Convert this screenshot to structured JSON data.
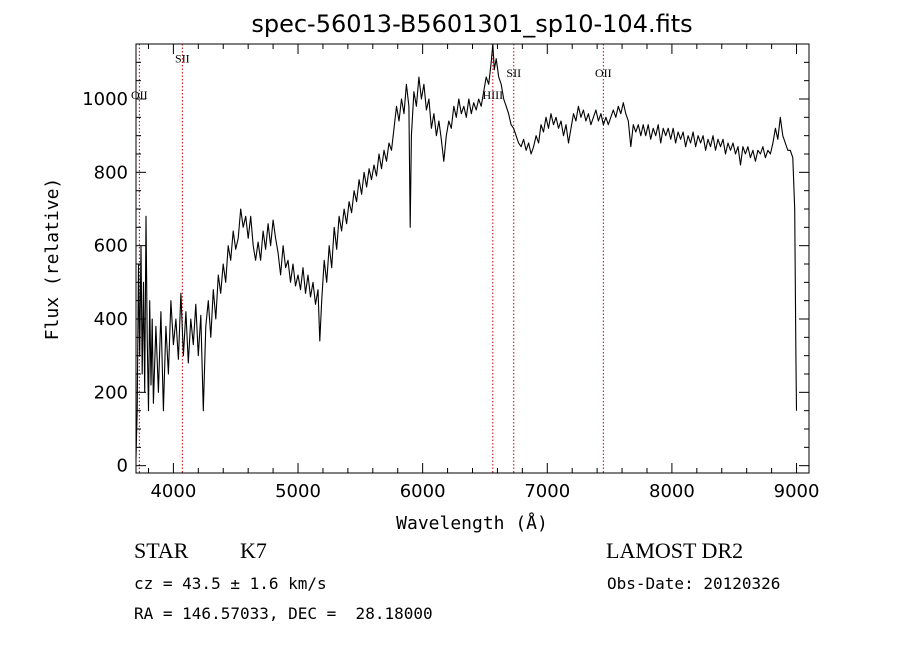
{
  "chart_data": {
    "type": "line",
    "title": "spec-56013-B5601301_sp10-104.fits",
    "xlabel": "Wavelength (Å)",
    "ylabel": "Flux (relative)",
    "xlim": [
      3700,
      9100
    ],
    "ylim": [
      -20,
      1150
    ],
    "x_ticks": [
      4000,
      5000,
      6000,
      7000,
      8000,
      9000
    ],
    "y_ticks": [
      0,
      200,
      400,
      600,
      800,
      1000
    ],
    "grid": false,
    "series": [
      {
        "points": [
          [
            3700,
            20
          ],
          [
            3710,
            150
          ],
          [
            3720,
            550
          ],
          [
            3730,
            300
          ],
          [
            3740,
            600
          ],
          [
            3750,
            250
          ],
          [
            3760,
            500
          ],
          [
            3770,
            200
          ],
          [
            3780,
            680
          ],
          [
            3790,
            350
          ],
          [
            3800,
            150
          ],
          [
            3810,
            450
          ],
          [
            3820,
            220
          ],
          [
            3830,
            400
          ],
          [
            3840,
            170
          ],
          [
            3860,
            380
          ],
          [
            3880,
            200
          ],
          [
            3900,
            420
          ],
          [
            3920,
            150
          ],
          [
            3940,
            380
          ],
          [
            3960,
            250
          ],
          [
            3980,
            450
          ],
          [
            4000,
            330
          ],
          [
            4020,
            400
          ],
          [
            4040,
            290
          ],
          [
            4060,
            470
          ],
          [
            4080,
            300
          ],
          [
            4100,
            420
          ],
          [
            4120,
            280
          ],
          [
            4140,
            400
          ],
          [
            4160,
            330
          ],
          [
            4180,
            440
          ],
          [
            4200,
            300
          ],
          [
            4220,
            410
          ],
          [
            4240,
            150
          ],
          [
            4260,
            380
          ],
          [
            4280,
            450
          ],
          [
            4300,
            350
          ],
          [
            4320,
            480
          ],
          [
            4340,
            400
          ],
          [
            4360,
            520
          ],
          [
            4380,
            470
          ],
          [
            4400,
            550
          ],
          [
            4420,
            500
          ],
          [
            4440,
            600
          ],
          [
            4460,
            560
          ],
          [
            4480,
            640
          ],
          [
            4500,
            590
          ],
          [
            4520,
            620
          ],
          [
            4540,
            700
          ],
          [
            4560,
            650
          ],
          [
            4580,
            680
          ],
          [
            4600,
            620
          ],
          [
            4620,
            680
          ],
          [
            4640,
            600
          ],
          [
            4660,
            560
          ],
          [
            4680,
            610
          ],
          [
            4700,
            560
          ],
          [
            4720,
            640
          ],
          [
            4740,
            590
          ],
          [
            4760,
            660
          ],
          [
            4780,
            600
          ],
          [
            4800,
            670
          ],
          [
            4820,
            620
          ],
          [
            4840,
            580
          ],
          [
            4860,
            520
          ],
          [
            4880,
            600
          ],
          [
            4900,
            540
          ],
          [
            4920,
            560
          ],
          [
            4940,
            500
          ],
          [
            4960,
            550
          ],
          [
            4980,
            490
          ],
          [
            5000,
            520
          ],
          [
            5020,
            480
          ],
          [
            5040,
            540
          ],
          [
            5060,
            470
          ],
          [
            5080,
            520
          ],
          [
            5100,
            460
          ],
          [
            5120,
            500
          ],
          [
            5140,
            440
          ],
          [
            5160,
            480
          ],
          [
            5175,
            340
          ],
          [
            5190,
            450
          ],
          [
            5210,
            560
          ],
          [
            5230,
            500
          ],
          [
            5250,
            600
          ],
          [
            5270,
            540
          ],
          [
            5290,
            650
          ],
          [
            5310,
            590
          ],
          [
            5330,
            680
          ],
          [
            5350,
            640
          ],
          [
            5370,
            700
          ],
          [
            5390,
            660
          ],
          [
            5410,
            720
          ],
          [
            5430,
            690
          ],
          [
            5450,
            750
          ],
          [
            5470,
            720
          ],
          [
            5490,
            780
          ],
          [
            5510,
            740
          ],
          [
            5530,
            800
          ],
          [
            5550,
            760
          ],
          [
            5570,
            810
          ],
          [
            5590,
            780
          ],
          [
            5610,
            820
          ],
          [
            5630,
            790
          ],
          [
            5650,
            850
          ],
          [
            5670,
            810
          ],
          [
            5690,
            860
          ],
          [
            5710,
            830
          ],
          [
            5730,
            880
          ],
          [
            5750,
            860
          ],
          [
            5770,
            920
          ],
          [
            5790,
            980
          ],
          [
            5810,
            940
          ],
          [
            5830,
            1000
          ],
          [
            5850,
            960
          ],
          [
            5870,
            1040
          ],
          [
            5890,
            980
          ],
          [
            5900,
            650
          ],
          [
            5910,
            900
          ],
          [
            5930,
            1020
          ],
          [
            5950,
            980
          ],
          [
            5970,
            1060
          ],
          [
            5990,
            1000
          ],
          [
            6010,
            1040
          ],
          [
            6030,
            970
          ],
          [
            6050,
            1000
          ],
          [
            6070,
            920
          ],
          [
            6090,
            960
          ],
          [
            6110,
            900
          ],
          [
            6130,
            940
          ],
          [
            6150,
            890
          ],
          [
            6170,
            830
          ],
          [
            6190,
            900
          ],
          [
            6210,
            940
          ],
          [
            6230,
            920
          ],
          [
            6250,
            980
          ],
          [
            6270,
            950
          ],
          [
            6290,
            1000
          ],
          [
            6310,
            960
          ],
          [
            6330,
            980
          ],
          [
            6350,
            950
          ],
          [
            6370,
            1000
          ],
          [
            6390,
            960
          ],
          [
            6410,
            990
          ],
          [
            6430,
            970
          ],
          [
            6450,
            1000
          ],
          [
            6470,
            980
          ],
          [
            6490,
            1020
          ],
          [
            6510,
            1060
          ],
          [
            6530,
            1040
          ],
          [
            6550,
            1100
          ],
          [
            6563,
            1150
          ],
          [
            6575,
            1080
          ],
          [
            6590,
            1110
          ],
          [
            6610,
            1060
          ],
          [
            6630,
            1040
          ],
          [
            6650,
            1000
          ],
          [
            6670,
            980
          ],
          [
            6690,
            960
          ],
          [
            6710,
            930
          ],
          [
            6730,
            920
          ],
          [
            6750,
            900
          ],
          [
            6770,
            880
          ],
          [
            6790,
            870
          ],
          [
            6810,
            890
          ],
          [
            6830,
            860
          ],
          [
            6850,
            880
          ],
          [
            6870,
            850
          ],
          [
            6890,
            870
          ],
          [
            6910,
            900
          ],
          [
            6930,
            880
          ],
          [
            6950,
            930
          ],
          [
            6970,
            910
          ],
          [
            6990,
            950
          ],
          [
            7010,
            920
          ],
          [
            7030,
            960
          ],
          [
            7050,
            930
          ],
          [
            7070,
            950
          ],
          [
            7090,
            920
          ],
          [
            7110,
            940
          ],
          [
            7130,
            900
          ],
          [
            7150,
            930
          ],
          [
            7170,
            880
          ],
          [
            7190,
            920
          ],
          [
            7210,
            960
          ],
          [
            7230,
            940
          ],
          [
            7250,
            980
          ],
          [
            7270,
            950
          ],
          [
            7290,
            970
          ],
          [
            7310,
            940
          ],
          [
            7330,
            960
          ],
          [
            7350,
            930
          ],
          [
            7370,
            950
          ],
          [
            7390,
            970
          ],
          [
            7410,
            940
          ],
          [
            7430,
            960
          ],
          [
            7450,
            930
          ],
          [
            7470,
            950
          ],
          [
            7490,
            930
          ],
          [
            7510,
            950
          ],
          [
            7530,
            970
          ],
          [
            7550,
            950
          ],
          [
            7570,
            980
          ],
          [
            7590,
            960
          ],
          [
            7610,
            990
          ],
          [
            7630,
            960
          ],
          [
            7650,
            940
          ],
          [
            7670,
            870
          ],
          [
            7690,
            930
          ],
          [
            7710,
            910
          ],
          [
            7730,
            930
          ],
          [
            7750,
            900
          ],
          [
            7770,
            930
          ],
          [
            7790,
            900
          ],
          [
            7810,
            930
          ],
          [
            7830,
            890
          ],
          [
            7850,
            920
          ],
          [
            7870,
            900
          ],
          [
            7890,
            930
          ],
          [
            7910,
            880
          ],
          [
            7930,
            920
          ],
          [
            7950,
            900
          ],
          [
            7970,
            920
          ],
          [
            7990,
            890
          ],
          [
            8010,
            920
          ],
          [
            8030,
            880
          ],
          [
            8050,
            910
          ],
          [
            8070,
            890
          ],
          [
            8090,
            910
          ],
          [
            8110,
            870
          ],
          [
            8130,
            900
          ],
          [
            8150,
            880
          ],
          [
            8170,
            910
          ],
          [
            8190,
            870
          ],
          [
            8210,
            900
          ],
          [
            8230,
            880
          ],
          [
            8250,
            900
          ],
          [
            8270,
            860
          ],
          [
            8290,
            890
          ],
          [
            8310,
            870
          ],
          [
            8330,
            900
          ],
          [
            8350,
            860
          ],
          [
            8370,
            890
          ],
          [
            8390,
            870
          ],
          [
            8410,
            890
          ],
          [
            8430,
            850
          ],
          [
            8450,
            880
          ],
          [
            8470,
            860
          ],
          [
            8490,
            880
          ],
          [
            8510,
            850
          ],
          [
            8530,
            870
          ],
          [
            8550,
            820
          ],
          [
            8570,
            870
          ],
          [
            8590,
            850
          ],
          [
            8610,
            870
          ],
          [
            8630,
            840
          ],
          [
            8650,
            860
          ],
          [
            8670,
            830
          ],
          [
            8690,
            860
          ],
          [
            8710,
            850
          ],
          [
            8730,
            870
          ],
          [
            8750,
            840
          ],
          [
            8770,
            860
          ],
          [
            8790,
            850
          ],
          [
            8810,
            880
          ],
          [
            8830,
            920
          ],
          [
            8850,
            890
          ],
          [
            8870,
            950
          ],
          [
            8890,
            900
          ],
          [
            8910,
            880
          ],
          [
            8930,
            860
          ],
          [
            8950,
            860
          ],
          [
            8970,
            840
          ],
          [
            8985,
            700
          ],
          [
            8995,
            300
          ],
          [
            9000,
            150
          ]
        ]
      }
    ],
    "lines": [
      {
        "label": "OII",
        "x": 3727,
        "label_y": 1000
      },
      {
        "label": "SII",
        "x": 4072,
        "label_y": 1100
      },
      {
        "label": "HIII",
        "x": 6563,
        "label_y": 1000
      },
      {
        "label": "SII",
        "x": 6731,
        "label_y": 1060
      },
      {
        "label": "OII",
        "x": 7450,
        "label_y": 1060
      }
    ],
    "line_color": "#cc0000"
  },
  "info": {
    "class_label": "STAR",
    "subclass_label": "K7",
    "survey_label": "LAMOST DR2",
    "cz_text": "cz = 43.5 ± 1.6 km/s",
    "obs_date_text": "Obs-Date: 20120326",
    "radec_text": "RA = 146.57033, DEC =  28.18000"
  }
}
